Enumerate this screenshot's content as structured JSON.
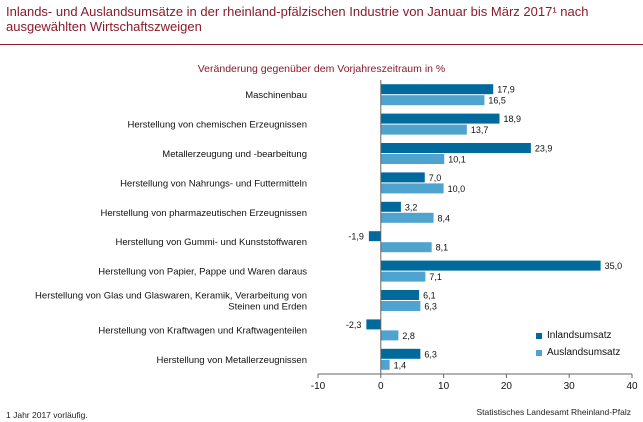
{
  "title": "Inlands- und Auslandsumsätze in der rheinland-pfälzischen Industrie von Januar bis März 2017¹ nach ausgewählten Wirtschaftszweigen",
  "footnote": "1 Jahr 2017 vorläufig.",
  "source": "Statistisches Landesamt Rheinland-Pfalz",
  "colors": {
    "inland": "#006a9c",
    "ausland": "#4fa3cf",
    "accent": "#8b1a2b"
  },
  "chart_data": {
    "type": "bar",
    "orientation": "horizontal",
    "subtitle": "Veränderung gegenüber dem Vorjahreszeitraum in %",
    "categories": [
      "Maschinenbau",
      "Herstellung von chemischen Erzeugnissen",
      "Metallerzeugung und -bearbeitung",
      "Herstellung von Nahrungs- und Futtermitteln",
      "Herstellung von pharmazeutischen Erzeugnissen",
      "Herstellung von Gummi- und Kunststoffwaren",
      "Herstellung von Papier, Pappe und Waren daraus",
      "Herstellung von Glas und Glaswaren, Keramik, Verarbeitung von Steinen und Erden",
      "Herstellung von Kraftwagen und Kraftwagenteilen",
      "Herstellung von Metallerzeugnissen"
    ],
    "series": [
      {
        "name": "Inlandsumsatz",
        "values": [
          17.9,
          18.9,
          23.9,
          7.0,
          3.2,
          -1.9,
          35.0,
          6.1,
          -2.3,
          6.3
        ],
        "labels": [
          "17,9",
          "18,9",
          "23,9",
          "7,0",
          "3,2",
          "-1,9",
          "35,0",
          "6,1",
          "-2,3",
          "6,3"
        ]
      },
      {
        "name": "Auslandsumsatz",
        "values": [
          16.5,
          13.7,
          10.1,
          10.0,
          8.4,
          8.1,
          7.1,
          6.3,
          2.8,
          1.4
        ],
        "labels": [
          "16,5",
          "13,7",
          "10,1",
          "10,0",
          "8,4",
          "8,1",
          "7,1",
          "6,3",
          "2,8",
          "1,4"
        ]
      }
    ],
    "xlim": [
      -10,
      40
    ],
    "xticks": [
      -10,
      0,
      10,
      20,
      30,
      40
    ],
    "xtick_labels": [
      "-10",
      "0",
      "10",
      "20",
      "30",
      "40"
    ],
    "grid": false,
    "legend_position": "bottom-right"
  }
}
